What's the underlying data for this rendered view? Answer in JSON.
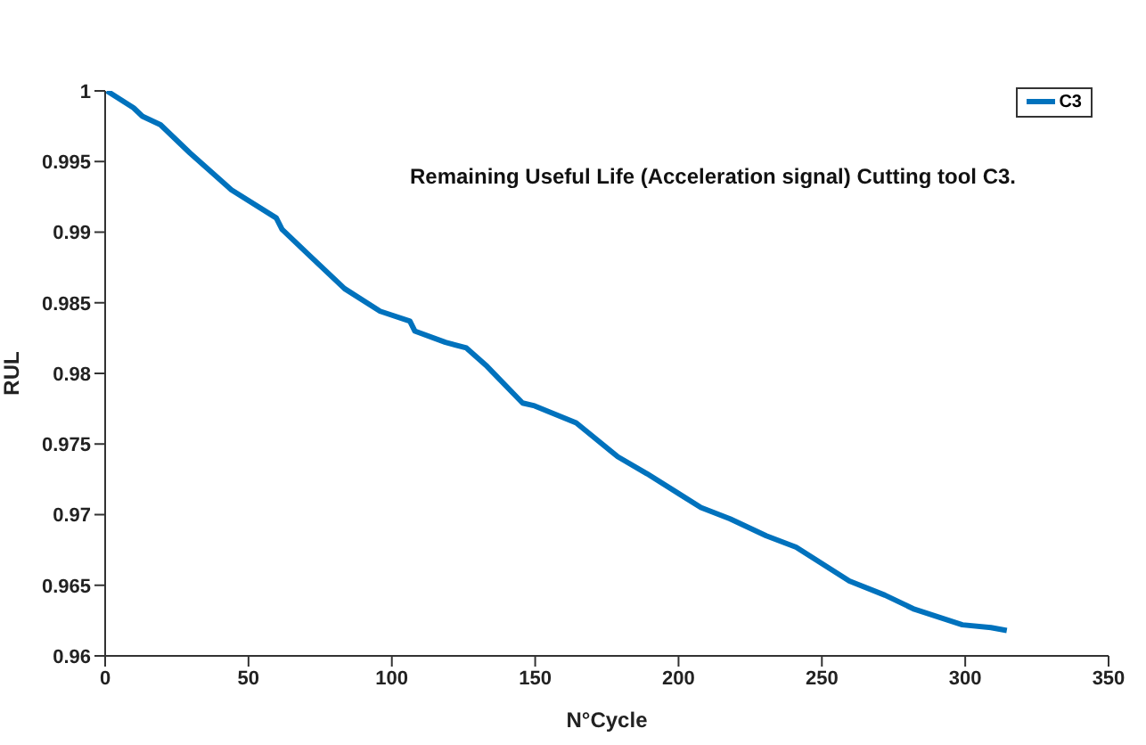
{
  "chart_data": {
    "type": "line",
    "title": "Remaining Useful Life (Acceleration signal) Cutting tool C3.",
    "xlabel": "N°Cycle",
    "ylabel": "RUL",
    "x": [
      0.6,
      9.9,
      13,
      19.3,
      29.6,
      44,
      59.7,
      61.7,
      71,
      83.5,
      95.9,
      106.3,
      108,
      118.7,
      126,
      133.2,
      145.6,
      149.8,
      164.3,
      178.8,
      189,
      207.8,
      218,
      230.6,
      241,
      259.6,
      272,
      282.3,
      299,
      309,
      314.5
    ],
    "series": [
      {
        "name": "C3",
        "color": "#0072bd",
        "values": [
          1.0,
          0.9988,
          0.9982,
          0.9976,
          0.9956,
          0.993,
          0.991,
          0.9902,
          0.9884,
          0.986,
          0.9844,
          0.9837,
          0.983,
          0.9822,
          0.9818,
          0.9805,
          0.9779,
          0.9777,
          0.9765,
          0.9741,
          0.9729,
          0.9705,
          0.9697,
          0.9685,
          0.9677,
          0.9653,
          0.9643,
          0.9633,
          0.9622,
          0.962,
          0.9618
        ]
      }
    ],
    "xlim": [
      0,
      350
    ],
    "xticks": [
      0,
      50,
      100,
      150,
      200,
      250,
      300,
      350
    ],
    "ylim": [
      0.96,
      1
    ],
    "yticks": [
      0.96,
      0.965,
      0.97,
      0.975,
      0.98,
      0.985,
      0.99,
      0.995,
      1
    ],
    "grid": false,
    "legend": "top right",
    "line_style": "solid"
  }
}
